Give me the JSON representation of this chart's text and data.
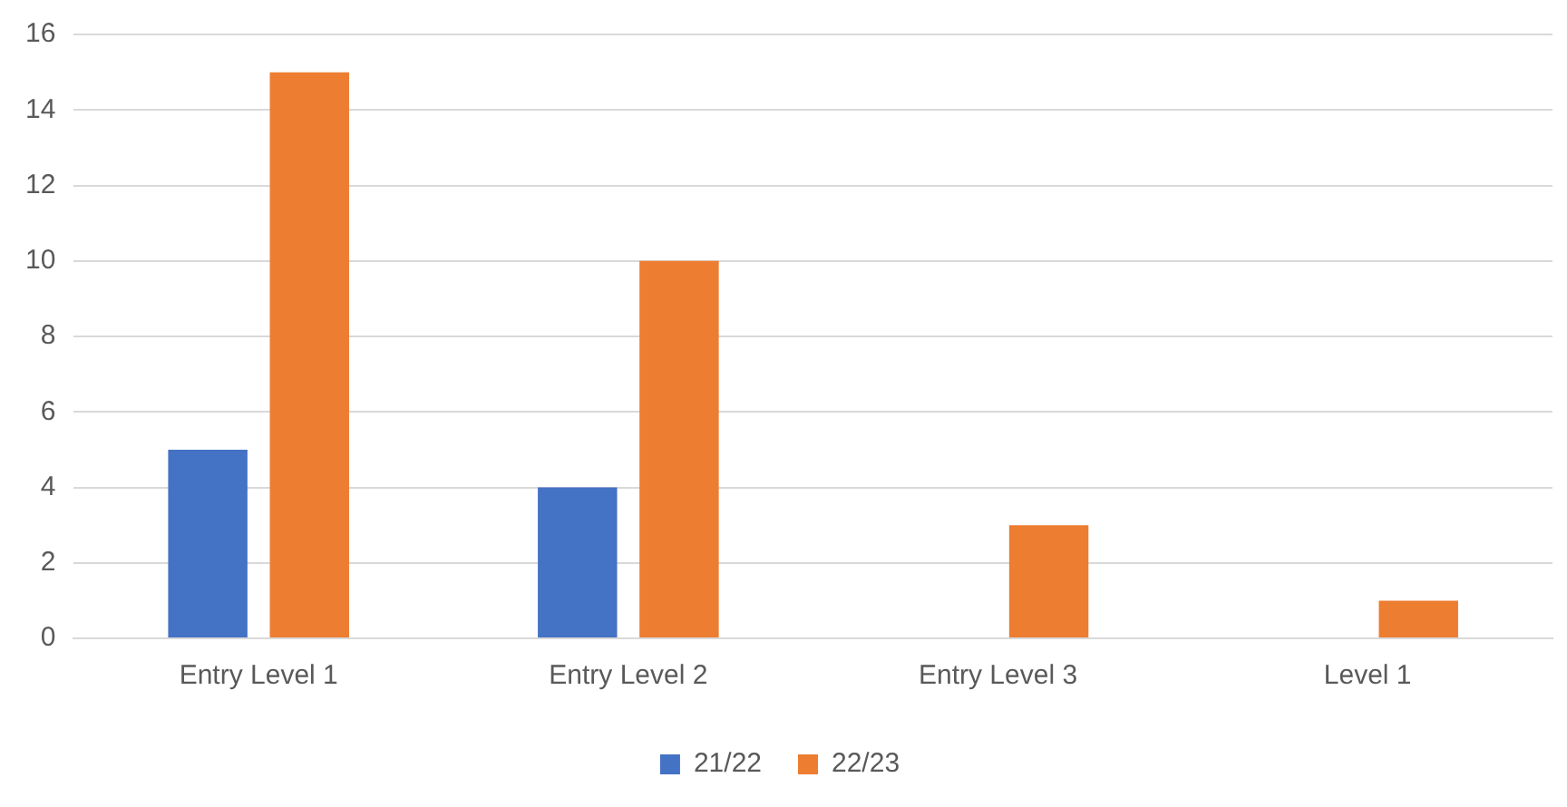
{
  "chart_data": {
    "type": "bar",
    "categories": [
      "Entry Level 1",
      "Entry Level 2",
      "Entry Level 3",
      "Level 1"
    ],
    "series": [
      {
        "name": "21/22",
        "color": "#4472c4",
        "values": [
          5,
          4,
          null,
          null
        ]
      },
      {
        "name": "22/23",
        "color": "#ed7d31",
        "values": [
          15,
          10,
          3,
          1
        ]
      }
    ],
    "ylim": [
      0,
      16
    ],
    "yticks": [
      0,
      2,
      4,
      6,
      8,
      10,
      12,
      14,
      16
    ],
    "grid": "y",
    "legend": "bottom"
  }
}
